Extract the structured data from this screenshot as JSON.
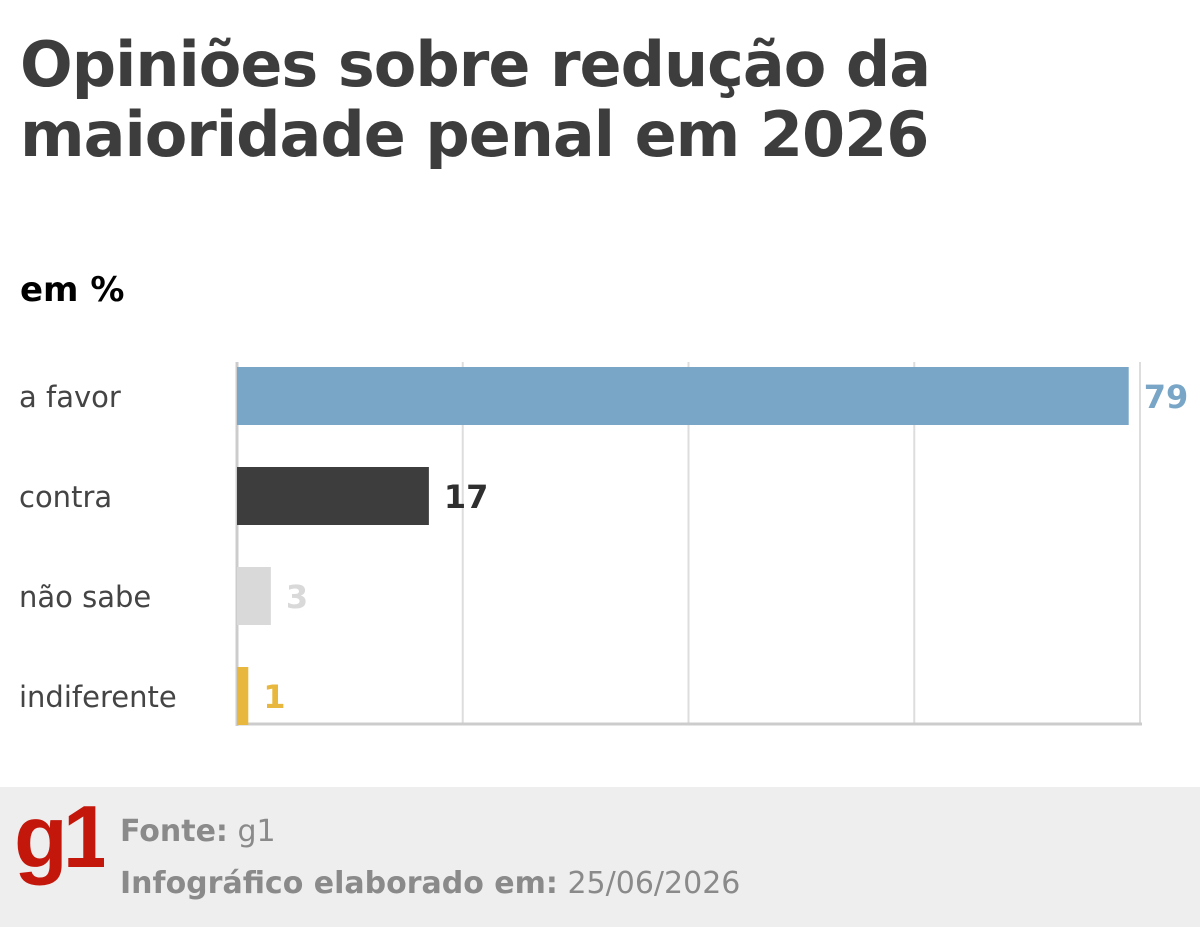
{
  "title": "Opiniões sobre redução da maioridade penal em 2026",
  "unit_label": "em %",
  "chart_data": {
    "type": "bar",
    "orientation": "horizontal",
    "title": "Opiniões sobre redução da maioridade penal em 2026",
    "unit": "em %",
    "categories": [
      "a favor",
      "contra",
      "não sabe",
      "indiferente"
    ],
    "values": [
      79,
      17,
      3,
      1
    ],
    "colors": [
      "#79a6c6",
      "#3d3d3d",
      "#d9d9d9",
      "#e8b83e"
    ],
    "xlim": [
      0,
      80
    ],
    "gridlines": [
      20,
      40,
      60,
      80
    ],
    "grid": true,
    "data_labels": true
  },
  "footer": {
    "logo_text": "g1",
    "logo_color": "#c4170c",
    "source_label": "Fonte:",
    "source_value": "g1",
    "date_label": "Infográfico elaborado em:",
    "date_value": "25/06/2026"
  }
}
